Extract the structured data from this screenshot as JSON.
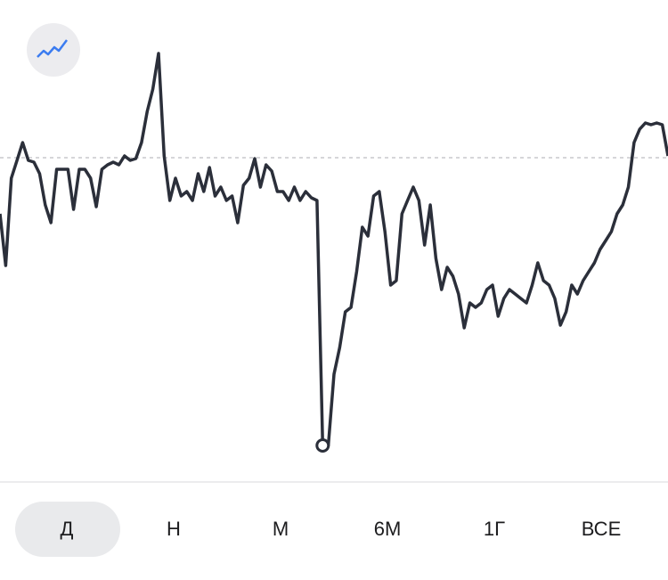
{
  "chart_data": {
    "type": "line",
    "color": "#2b2f3a",
    "ylim": [
      0,
      540
    ],
    "reference": 363,
    "values": [
      300,
      242,
      340,
      360,
      380,
      360,
      358,
      345,
      310,
      290,
      350,
      350,
      350,
      305,
      350,
      350,
      340,
      308,
      350,
      355,
      358,
      355,
      365,
      360,
      362,
      380,
      415,
      440,
      480,
      365,
      315,
      340,
      320,
      325,
      315,
      345,
      325,
      352,
      320,
      330,
      315,
      320,
      290,
      332,
      340,
      362,
      330,
      355,
      348,
      325,
      325,
      315,
      330,
      315,
      325,
      318,
      315,
      40,
      40,
      120,
      150,
      190,
      195,
      235,
      285,
      275,
      320,
      325,
      280,
      220,
      225,
      300,
      315,
      330,
      315,
      265,
      310,
      250,
      215,
      240,
      230,
      210,
      172,
      200,
      195,
      200,
      215,
      220,
      185,
      205,
      215,
      210,
      205,
      200,
      220,
      245,
      225,
      220,
      205,
      175,
      190,
      220,
      210,
      225,
      235,
      245,
      260,
      270,
      280,
      300,
      310,
      330,
      380,
      395,
      402,
      400,
      402,
      400,
      365
    ]
  },
  "tabs": [
    "Д",
    "Н",
    "М",
    "6М",
    "1Г",
    "ВСЕ"
  ]
}
